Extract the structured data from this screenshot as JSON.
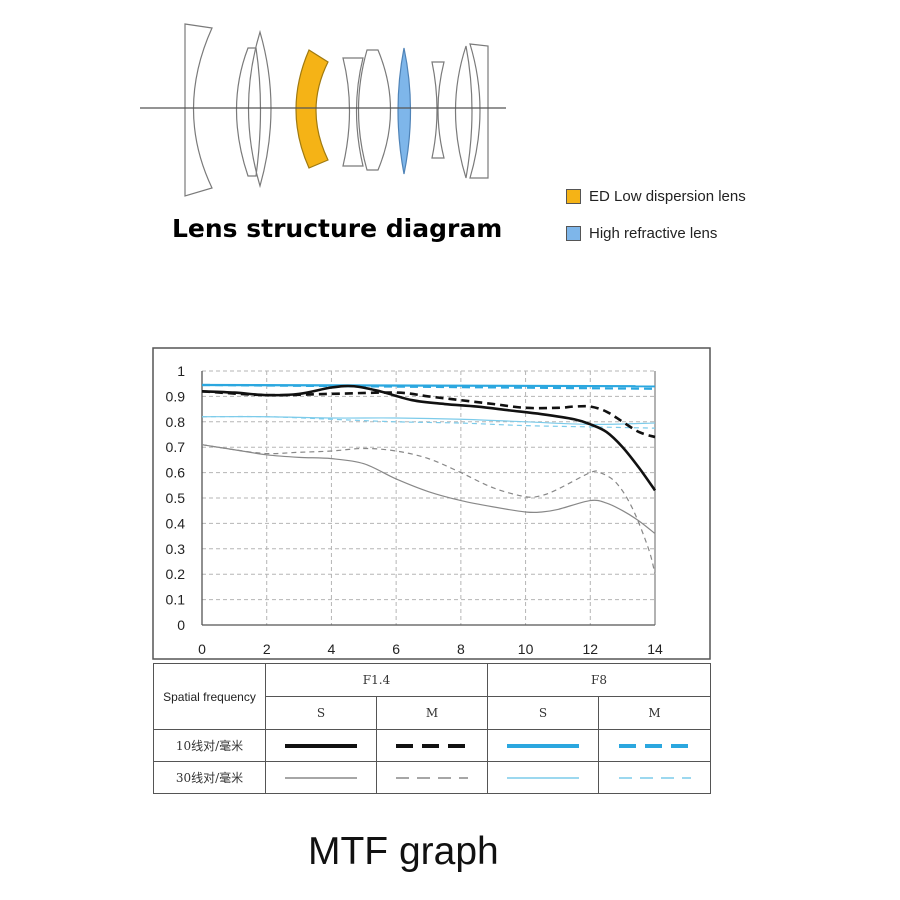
{
  "lens_section": {
    "title": "Lens structure diagram",
    "legend": [
      {
        "label": "ED Low dispersion lens",
        "color": "#f5b316"
      },
      {
        "label": "High refractive lens",
        "color": "#7eb6ea"
      }
    ]
  },
  "chart_data": {
    "type": "line",
    "title": "",
    "xlabel": "",
    "ylabel": "",
    "xlim": [
      0,
      14
    ],
    "ylim": [
      0,
      1
    ],
    "grid": true,
    "x_ticks": [
      "0",
      "2",
      "4",
      "6",
      "8",
      "10",
      "12",
      "14"
    ],
    "y_ticks": [
      "0",
      "0.1",
      "0.2",
      "0.3",
      "0.4",
      "0.5",
      "0.6",
      "0.7",
      "0.8",
      "0.9",
      "1"
    ],
    "series": [
      {
        "aperture": "F1.4",
        "frequency": "10线对/毫米",
        "direction": "S",
        "color": "#111111",
        "x": [
          0,
          1,
          2,
          3,
          4,
          4.7,
          5.5,
          6.5,
          7.5,
          8.5,
          9.5,
          10.5,
          11.5,
          12,
          12.5,
          13,
          13.5,
          14
        ],
        "y": [
          0.92,
          0.915,
          0.905,
          0.91,
          0.935,
          0.94,
          0.92,
          0.885,
          0.87,
          0.86,
          0.845,
          0.83,
          0.81,
          0.79,
          0.76,
          0.7,
          0.62,
          0.53
        ]
      },
      {
        "aperture": "F1.4",
        "frequency": "10线对/毫米",
        "direction": "M",
        "color": "#111111",
        "x": [
          0,
          2,
          4,
          6,
          7,
          8,
          9,
          10,
          11,
          11.5,
          12,
          12.5,
          13,
          13.5,
          14
        ],
        "y": [
          0.92,
          0.905,
          0.91,
          0.915,
          0.9,
          0.885,
          0.87,
          0.855,
          0.855,
          0.86,
          0.86,
          0.84,
          0.8,
          0.76,
          0.74
        ]
      },
      {
        "aperture": "F1.4",
        "frequency": "30线对/毫米",
        "direction": "S",
        "color": "#888888",
        "x": [
          0,
          1,
          2,
          3,
          4,
          5,
          6,
          7,
          8,
          9,
          10,
          10.5,
          11,
          12,
          12.5,
          13,
          13.5,
          14
        ],
        "y": [
          0.71,
          0.69,
          0.67,
          0.66,
          0.655,
          0.635,
          0.575,
          0.525,
          0.49,
          0.465,
          0.445,
          0.445,
          0.455,
          0.49,
          0.48,
          0.45,
          0.41,
          0.36
        ]
      },
      {
        "aperture": "F1.4",
        "frequency": "30线对/毫米",
        "direction": "M",
        "color": "#888888",
        "x": [
          0,
          1,
          2,
          3,
          4,
          5,
          6,
          7,
          8,
          9,
          10,
          10.5,
          11,
          12,
          12.3,
          12.8,
          13.3,
          13.8,
          14
        ],
        "y": [
          0.71,
          0.69,
          0.675,
          0.68,
          0.685,
          0.695,
          0.685,
          0.655,
          0.6,
          0.54,
          0.505,
          0.51,
          0.535,
          0.6,
          0.6,
          0.56,
          0.46,
          0.3,
          0.2
        ]
      },
      {
        "aperture": "F8",
        "frequency": "10线对/毫米",
        "direction": "S",
        "color": "#2ba7df",
        "x": [
          0,
          14
        ],
        "y": [
          0.945,
          0.94
        ]
      },
      {
        "aperture": "F8",
        "frequency": "10线对/毫米",
        "direction": "M",
        "color": "#2ba7df",
        "x": [
          0,
          14
        ],
        "y": [
          0.945,
          0.93
        ]
      },
      {
        "aperture": "F8",
        "frequency": "30线对/毫米",
        "direction": "S",
        "color": "#7ccbea",
        "x": [
          0,
          2,
          4,
          6,
          8,
          10,
          12,
          14
        ],
        "y": [
          0.82,
          0.82,
          0.815,
          0.815,
          0.81,
          0.8,
          0.79,
          0.795
        ]
      },
      {
        "aperture": "F8",
        "frequency": "30线对/毫米",
        "direction": "M",
        "color": "#7ccbea",
        "x": [
          0,
          2,
          4,
          6,
          8,
          10,
          12,
          14
        ],
        "y": [
          0.82,
          0.82,
          0.81,
          0.8,
          0.795,
          0.785,
          0.78,
          0.775
        ]
      }
    ]
  },
  "table": {
    "header_label": "Spatial frequency",
    "apertures": [
      "F1.4",
      "F8"
    ],
    "directions": [
      "S",
      "M"
    ],
    "rows": [
      "10线对/毫米",
      "30线对/毫米"
    ]
  },
  "caption": "MTF graph"
}
